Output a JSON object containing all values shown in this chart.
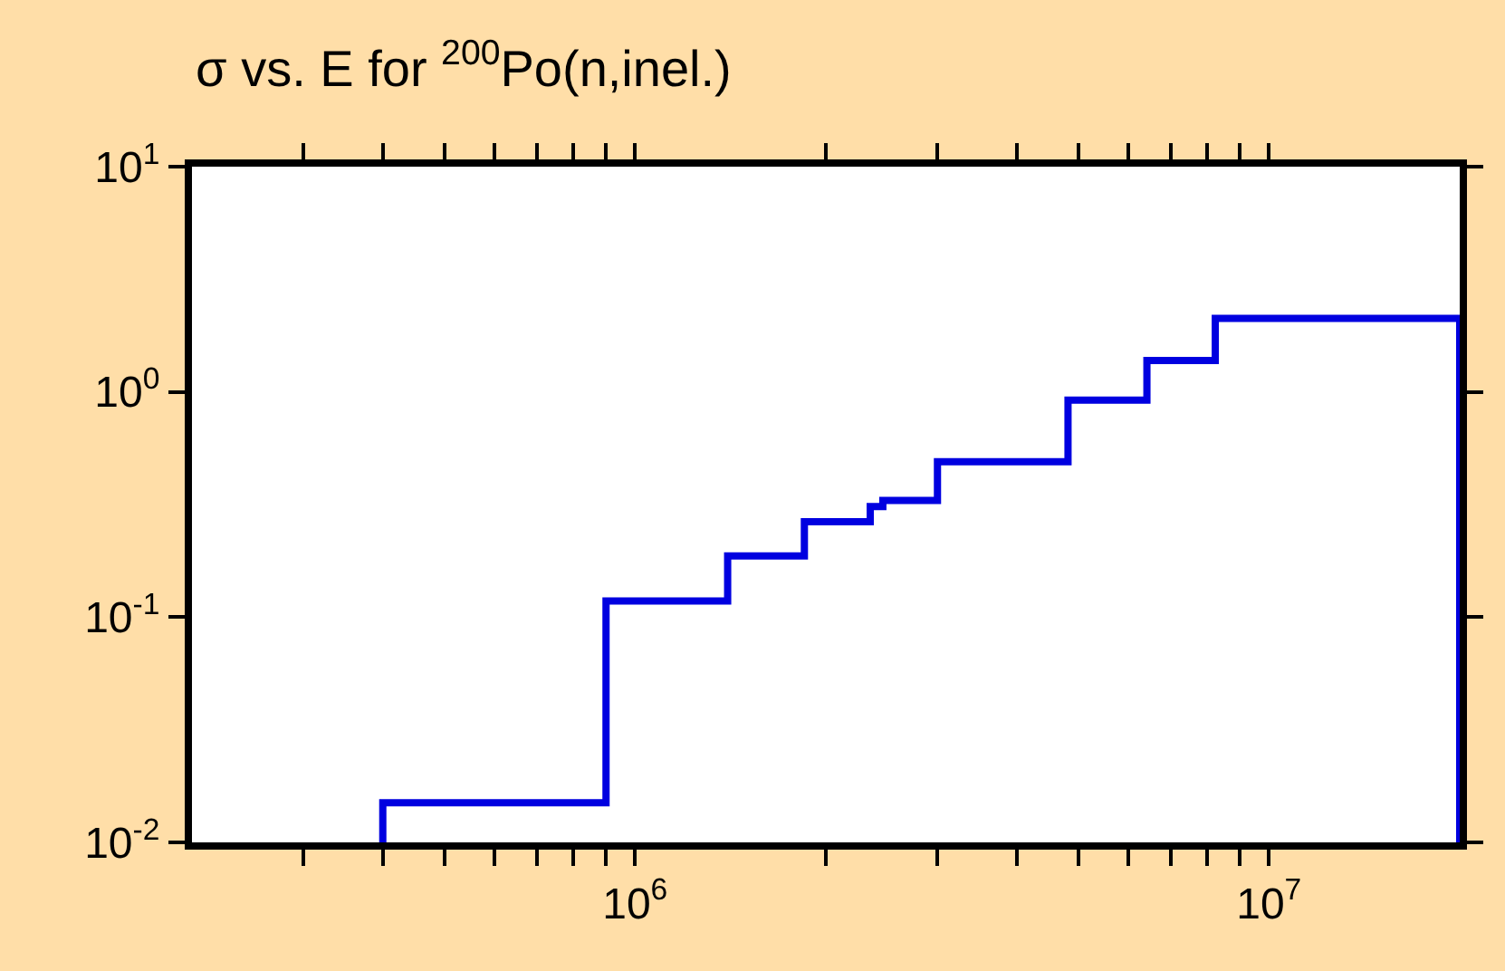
{
  "chart_data": {
    "type": "step",
    "title": "σ vs. E for $^{200}$Po(n,inel.)",
    "log": "xy",
    "legend": false,
    "marker": "none",
    "line_style": "solid",
    "x": [
      400000.0,
      400000.0,
      900000.0,
      1400000.0,
      1850000.0,
      2350000.0,
      2460000.0,
      3000000.0,
      4820000.0,
      6420000.0,
      8230000.0,
      20000000.0,
      20000000.0
    ],
    "series": [
      {
        "color": "#0000e0",
        "values": [
          0.01,
          0.015,
          0.118,
          0.187,
          0.265,
          0.31,
          0.33,
          0.49,
          0.92,
          1.38,
          2.12,
          2.12,
          0.01
        ]
      }
    ],
    "xlim": [
      200000.0,
      20000000.0
    ],
    "ylim": [
      0.01,
      10
    ],
    "xticks": [
      {
        "value": 300000.0,
        "label": null
      },
      {
        "value": 400000.0,
        "label": null
      },
      {
        "value": 500000.0,
        "label": null
      },
      {
        "value": 600000.0,
        "label": null
      },
      {
        "value": 700000.0,
        "label": null
      },
      {
        "value": 800000.0,
        "label": null
      },
      {
        "value": 900000.0,
        "label": null
      },
      {
        "value": 1000000.0,
        "label": "10$^{6}$"
      },
      {
        "value": 2000000.0,
        "label": null
      },
      {
        "value": 3000000.0,
        "label": null
      },
      {
        "value": 4000000.0,
        "label": null
      },
      {
        "value": 5000000.0,
        "label": null
      },
      {
        "value": 6000000.0,
        "label": null
      },
      {
        "value": 7000000.0,
        "label": null
      },
      {
        "value": 8000000.0,
        "label": null
      },
      {
        "value": 9000000.0,
        "label": null
      },
      {
        "value": 10000000.0,
        "label": "10$^{7}$"
      }
    ],
    "yticks": [
      {
        "value": 0.01,
        "label": "10$^{-2}$"
      },
      {
        "value": 0.1,
        "label": "10$^{-1}$"
      },
      {
        "value": 1,
        "label": "10$^{0}$"
      },
      {
        "value": 10,
        "label": "10$^{1}$"
      }
    ]
  }
}
